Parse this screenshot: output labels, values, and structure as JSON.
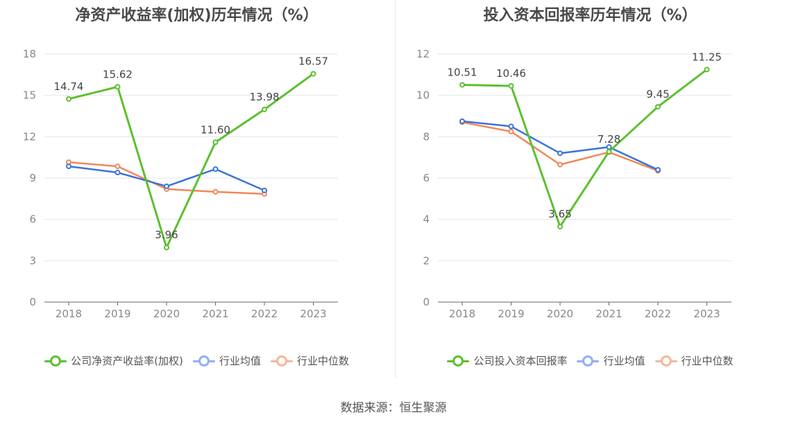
{
  "source": "数据来源：恒生聚源",
  "chart_data": [
    {
      "type": "line",
      "title": "净资产收益率(加权)历年情况（%）",
      "x": [
        "2018",
        "2019",
        "2020",
        "2021",
        "2022",
        "2023"
      ],
      "ylim": [
        0,
        18
      ],
      "yticks": [
        0,
        3,
        6,
        9,
        12,
        15,
        18
      ],
      "grid": true,
      "legend_position": "bottom",
      "series": [
        {
          "name": "公司净资产收益率(加权)",
          "color": "#5cc02d",
          "values": [
            14.74,
            15.62,
            3.96,
            11.6,
            13.98,
            16.57
          ],
          "labels": [
            "14.74",
            "15.62",
            "3.96",
            "11.60",
            "13.98",
            "16.57"
          ]
        },
        {
          "name": "行业均值",
          "color": "#3b73d9",
          "legend_color": "#8fb0ee",
          "values": [
            9.85,
            9.4,
            8.4,
            9.65,
            8.1,
            null
          ]
        },
        {
          "name": "行业中位数",
          "color": "#f08858",
          "legend_color": "#f6b69a",
          "values": [
            10.15,
            9.85,
            8.2,
            8.0,
            7.85,
            null
          ]
        }
      ]
    },
    {
      "type": "line",
      "title": "投入资本回报率历年情况（%）",
      "x": [
        "2018",
        "2019",
        "2020",
        "2021",
        "2022",
        "2023"
      ],
      "ylim": [
        0,
        12
      ],
      "yticks": [
        0,
        2,
        4,
        6,
        8,
        10,
        12
      ],
      "grid": true,
      "legend_position": "bottom",
      "series": [
        {
          "name": "公司投入资本回报率",
          "color": "#5cc02d",
          "values": [
            10.51,
            10.46,
            3.65,
            7.28,
            9.45,
            11.25
          ],
          "labels": [
            "10.51",
            "10.46",
            "3.65",
            "7.28",
            "9.45",
            "11.25"
          ]
        },
        {
          "name": "行业均值",
          "color": "#3b73d9",
          "legend_color": "#8fb0ee",
          "values": [
            8.75,
            8.5,
            7.2,
            7.5,
            6.4,
            null
          ]
        },
        {
          "name": "行业中位数",
          "color": "#f08858",
          "legend_color": "#f6b69a",
          "values": [
            8.7,
            8.25,
            6.65,
            7.25,
            6.35,
            null
          ]
        }
      ]
    }
  ]
}
